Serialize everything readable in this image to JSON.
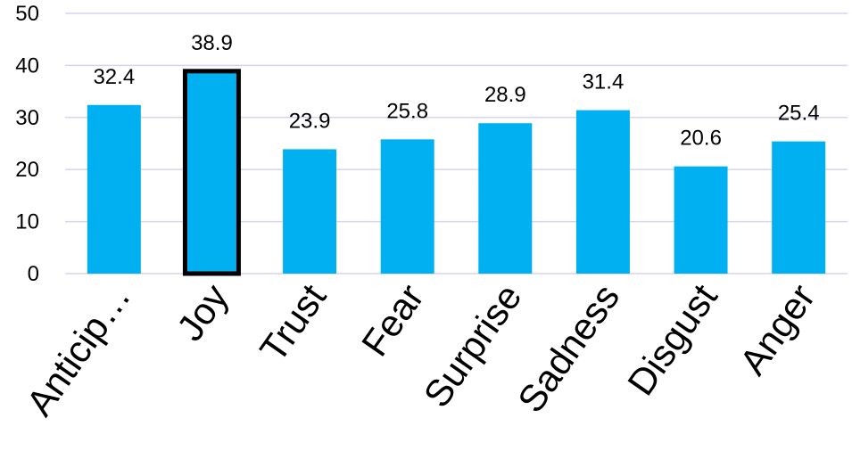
{
  "chart_data": {
    "type": "bar",
    "categories": [
      "Anticip…",
      "Joy",
      "Trust",
      "Fear",
      "Surprise",
      "Sadness",
      "Disgust",
      "Anger"
    ],
    "values": [
      32.4,
      38.9,
      23.9,
      25.8,
      28.9,
      31.4,
      20.6,
      25.4
    ],
    "data_labels": [
      "32.4",
      "38.9",
      "23.9",
      "25.8",
      "28.9",
      "31.4",
      "20.6",
      "25.4"
    ],
    "y_ticks": [
      "0",
      "10",
      "20",
      "30",
      "40",
      "50"
    ],
    "ylim": [
      0,
      50
    ],
    "grid": true,
    "highlighted_category": "Joy",
    "colors": {
      "bar": "#00B0F0",
      "grid": "#D9D2F2",
      "highlight_border": "#000000"
    }
  }
}
